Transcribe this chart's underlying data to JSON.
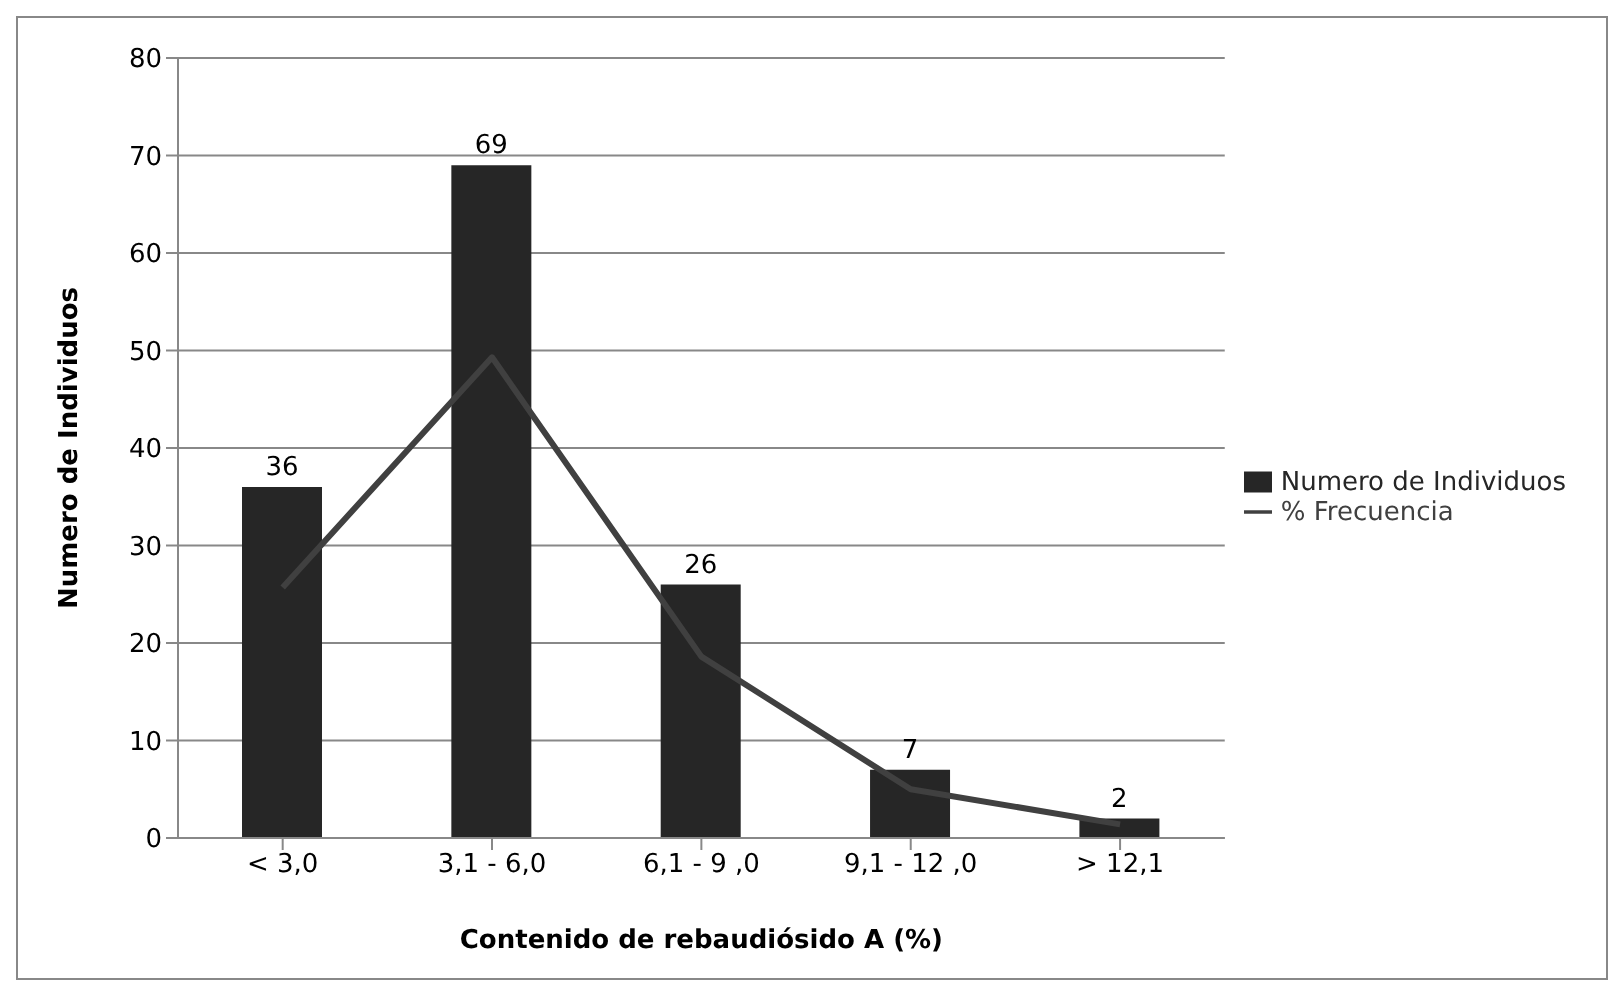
{
  "chart_data": {
    "type": "bar",
    "xlabel": "Contenido  de rebaudiósido A (%)",
    "ylabel": "Numero de Individuos",
    "categories": [
      "< 3,0",
      "3,1 - 6,0",
      "6,1 - 9 ,0",
      "9,1 - 12 ,0",
      "> 12,1"
    ],
    "series": [
      {
        "name": "Numero de Individuos",
        "color": "#262626",
        "values": [
          36,
          69,
          26,
          7,
          2
        ],
        "value_labels": [
          "36",
          "69",
          "26",
          "7",
          "2"
        ]
      },
      {
        "name": "% Frecuencia",
        "type": "line",
        "color": "#404040",
        "values": [
          25.7,
          49.3,
          18.6,
          5,
          1.4
        ],
        "marker": "none",
        "line_style": "solid"
      }
    ],
    "ylim": [
      0,
      80
    ],
    "yticks": [
      0,
      10,
      20,
      30,
      40,
      50,
      60,
      70,
      80
    ],
    "grid": "y",
    "legend": "right"
  }
}
